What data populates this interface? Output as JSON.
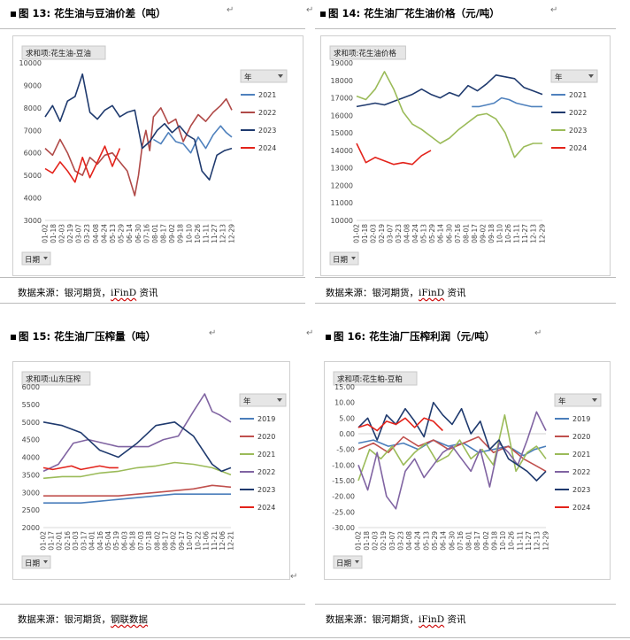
{
  "figures": [
    {
      "title": "图 13: 花生油与豆油价差（吨）",
      "source_prefix": "数据来源：银河期货，",
      "source_link": "iFinD",
      "source_suffix": " 资讯"
    },
    {
      "title": "图 14: 花生油厂花生油价格（元/吨）",
      "source_prefix": "数据来源：银河期货，",
      "source_link": "iFinD",
      "source_suffix": " 资讯"
    },
    {
      "title": "图 15: 花生油厂压榨量（吨）",
      "source_prefix": "数据来源：银河期货，",
      "source_link": "钢联数据",
      "source_suffix": ""
    },
    {
      "title": "图 16: 花生油厂压榨利润（元/吨）",
      "source_prefix": "数据来源：银河期货，",
      "source_link": "iFinD",
      "source_suffix": " 资讯"
    }
  ],
  "para_mark": "↵",
  "colors": {
    "2019": "#4a7ebb",
    "2020": "#c0504d",
    "2021": "#9bbb59",
    "2022": "#8064a2",
    "2023": "#1f3a6e",
    "2024": "#e3231b",
    "red_chart13_2022": "#b04a48",
    "blue_chart13_2021": "#4f81bd",
    "green": "#9bbb59"
  },
  "chart_data": [
    {
      "type": "line",
      "field_button": "求和项:花生油-豆油",
      "legend_title": "年",
      "axis_button": "日期",
      "ylim": [
        3000,
        10000
      ],
      "yticks": [
        "10000",
        "9000",
        "8000",
        "7000",
        "6000",
        "5000",
        "4000",
        "3000"
      ],
      "xticks": [
        "01-02",
        "01-18",
        "02-03",
        "02-19",
        "03-07",
        "03-23",
        "04-08",
        "04-24",
        "05-13",
        "05-29",
        "06-14",
        "06-30",
        "07-16",
        "08-01",
        "08-17",
        "09-02",
        "09-18",
        "10-10",
        "10-26",
        "11-11",
        "11-27",
        "12-13",
        "12-29"
      ],
      "series": [
        {
          "name": "2021",
          "color": "#4f81bd",
          "x": [
            0.58,
            0.62,
            0.66,
            0.7,
            0.74,
            0.78,
            0.82,
            0.86,
            0.9,
            0.94,
            0.97,
            1.0
          ],
          "values": [
            6600,
            6400,
            6900,
            6500,
            6400,
            6000,
            6700,
            6200,
            6800,
            7200,
            6900,
            6700
          ]
        },
        {
          "name": "2022",
          "color": "#b04a48",
          "x": [
            0.0,
            0.04,
            0.08,
            0.12,
            0.16,
            0.2,
            0.24,
            0.28,
            0.32,
            0.36,
            0.4,
            0.44,
            0.48,
            0.5,
            0.52,
            0.54,
            0.56,
            0.58,
            0.62,
            0.66,
            0.7,
            0.74,
            0.78,
            0.82,
            0.86,
            0.9,
            0.94,
            0.97,
            1.0
          ],
          "values": [
            6200,
            5900,
            6600,
            6000,
            5200,
            5000,
            5800,
            5500,
            5900,
            6000,
            5600,
            5200,
            4100,
            5000,
            6300,
            7000,
            6100,
            7600,
            8000,
            7300,
            7500,
            6500,
            7200,
            7700,
            7400,
            7800,
            8100,
            8400,
            7900
          ]
        },
        {
          "name": "2023",
          "color": "#1f3a6e",
          "x": [
            0.0,
            0.04,
            0.08,
            0.12,
            0.16,
            0.2,
            0.24,
            0.28,
            0.32,
            0.36,
            0.4,
            0.44,
            0.48,
            0.52,
            0.56,
            0.6,
            0.64,
            0.68,
            0.72,
            0.76,
            0.8,
            0.84,
            0.88,
            0.92,
            0.96,
            1.0
          ],
          "values": [
            7600,
            8100,
            7400,
            8300,
            8500,
            9500,
            7800,
            7500,
            7900,
            8100,
            7600,
            7800,
            7900,
            6200,
            6500,
            7000,
            7300,
            6900,
            7200,
            6800,
            6600,
            5200,
            4800,
            5900,
            6100,
            6200
          ]
        },
        {
          "name": "2024",
          "color": "#e3231b",
          "x": [
            0.0,
            0.04,
            0.08,
            0.12,
            0.16,
            0.2,
            0.24,
            0.28,
            0.32,
            0.36,
            0.4
          ],
          "values": [
            5300,
            5100,
            5600,
            5200,
            4700,
            5800,
            4900,
            5600,
            6300,
            5400,
            6200
          ]
        }
      ]
    },
    {
      "type": "line",
      "field_button": "求和项:花生油价格",
      "legend_title": "年",
      "axis_button": "日期",
      "ylim": [
        10000,
        19000
      ],
      "yticks": [
        "19000",
        "18000",
        "17000",
        "16000",
        "15000",
        "14000",
        "13000",
        "12000",
        "11000",
        "10000"
      ],
      "xticks": [
        "01-02",
        "01-18",
        "02-03",
        "02-19",
        "03-07",
        "03-23",
        "04-08",
        "04-24",
        "05-13",
        "05-29",
        "06-14",
        "06-30",
        "07-16",
        "08-01",
        "08-17",
        "09-02",
        "09-18",
        "10-10",
        "10-26",
        "11-11",
        "11-27",
        "12-13",
        "12-29"
      ],
      "series": [
        {
          "name": "2021",
          "color": "#4f81bd",
          "x": [
            0.62,
            0.66,
            0.7,
            0.74,
            0.78,
            0.82,
            0.86,
            0.9,
            0.94,
            1.0
          ],
          "values": [
            16500,
            16500,
            16600,
            16700,
            17000,
            16900,
            16700,
            16600,
            16500,
            16500
          ]
        },
        {
          "name": "2022",
          "color": "#1f3a6e",
          "x": [
            0.0,
            0.05,
            0.1,
            0.15,
            0.2,
            0.25,
            0.3,
            0.35,
            0.4,
            0.45,
            0.5,
            0.55,
            0.6,
            0.65,
            0.7,
            0.75,
            0.8,
            0.85,
            0.9,
            0.95,
            1.0
          ],
          "values": [
            16500,
            16600,
            16700,
            16600,
            16800,
            17000,
            17200,
            17500,
            17200,
            17000,
            17300,
            17100,
            17700,
            17400,
            17800,
            18300,
            18200,
            18100,
            17600,
            17400,
            17200
          ]
        },
        {
          "name": "2023",
          "color": "#9bbb59",
          "x": [
            0.0,
            0.05,
            0.1,
            0.15,
            0.2,
            0.25,
            0.3,
            0.35,
            0.4,
            0.45,
            0.5,
            0.55,
            0.6,
            0.65,
            0.7,
            0.75,
            0.8,
            0.85,
            0.9,
            0.95,
            1.0
          ],
          "values": [
            17100,
            16900,
            17500,
            18500,
            17500,
            16200,
            15500,
            15200,
            14800,
            14400,
            14700,
            15200,
            15600,
            16000,
            16100,
            15800,
            15000,
            13600,
            14200,
            14400,
            14400
          ]
        },
        {
          "name": "2024",
          "color": "#e3231b",
          "x": [
            0.0,
            0.05,
            0.1,
            0.15,
            0.2,
            0.25,
            0.3,
            0.35,
            0.4
          ],
          "values": [
            14400,
            13300,
            13600,
            13400,
            13200,
            13300,
            13200,
            13700,
            14000
          ]
        }
      ]
    },
    {
      "type": "line",
      "field_button": "求和项:山东压榨",
      "legend_title": "年",
      "axis_button": "日期",
      "ylim": [
        2000,
        6000
      ],
      "yticks": [
        "6000",
        "5500",
        "5000",
        "4500",
        "4000",
        "3500",
        "3000",
        "2500",
        "2000"
      ],
      "xticks": [
        "01-02",
        "01-17",
        "02-01",
        "02-16",
        "03-03",
        "03-17",
        "04-01",
        "04-16",
        "05-04",
        "05-19",
        "06-03",
        "06-18",
        "07-03",
        "07-18",
        "08-02",
        "08-17",
        "09-02",
        "09-17",
        "10-07",
        "10-22",
        "11-06",
        "11-21",
        "12-06",
        "12-21"
      ],
      "series": [
        {
          "name": "2019",
          "color": "#4a7ebb",
          "x": [
            0.0,
            0.1,
            0.2,
            0.3,
            0.4,
            0.5,
            0.6,
            0.7,
            0.8,
            0.9,
            1.0
          ],
          "values": [
            2700,
            2700,
            2700,
            2750,
            2800,
            2850,
            2900,
            2950,
            2950,
            2950,
            2950
          ]
        },
        {
          "name": "2020",
          "color": "#c0504d",
          "x": [
            0.0,
            0.1,
            0.2,
            0.3,
            0.4,
            0.5,
            0.6,
            0.7,
            0.8,
            0.9,
            1.0
          ],
          "values": [
            2900,
            2900,
            2900,
            2900,
            2900,
            2950,
            3000,
            3050,
            3100,
            3200,
            3150
          ]
        },
        {
          "name": "2021",
          "color": "#9bbb59",
          "x": [
            0.0,
            0.1,
            0.2,
            0.3,
            0.4,
            0.5,
            0.6,
            0.7,
            0.8,
            0.9,
            1.0
          ],
          "values": [
            3400,
            3450,
            3450,
            3550,
            3600,
            3700,
            3750,
            3850,
            3800,
            3700,
            3500
          ]
        },
        {
          "name": "2022",
          "color": "#8064a2",
          "x": [
            0.0,
            0.08,
            0.16,
            0.24,
            0.32,
            0.4,
            0.48,
            0.56,
            0.64,
            0.72,
            0.8,
            0.86,
            0.9,
            0.94,
            0.97,
            1.0
          ],
          "values": [
            3600,
            3800,
            4400,
            4500,
            4400,
            4300,
            4300,
            4300,
            4500,
            4600,
            5300,
            5800,
            5300,
            5200,
            5100,
            5000
          ]
        },
        {
          "name": "2023",
          "color": "#1f3a6e",
          "x": [
            0.0,
            0.1,
            0.2,
            0.3,
            0.4,
            0.5,
            0.6,
            0.7,
            0.8,
            0.9,
            0.95,
            1.0
          ],
          "values": [
            5000,
            4900,
            4700,
            4200,
            4000,
            4400,
            4900,
            5000,
            4600,
            3800,
            3600,
            3700
          ]
        },
        {
          "name": "2024",
          "color": "#e3231b",
          "x": [
            0.0,
            0.05,
            0.1,
            0.15,
            0.2,
            0.25,
            0.3,
            0.35,
            0.4
          ],
          "values": [
            3700,
            3650,
            3700,
            3750,
            3650,
            3700,
            3750,
            3700,
            3700
          ]
        }
      ]
    },
    {
      "type": "line",
      "field_button": "求和项:花生粕-豆粕",
      "legend_title": "年",
      "axis_button": "日期",
      "ylim": [
        -30,
        15
      ],
      "yticks": [
        "15.00",
        "10.00",
        "5.00",
        "0.00",
        "-5.00",
        "-10.00",
        "-15.00",
        "-20.00",
        "-25.00",
        "-30.00"
      ],
      "xticks": [
        "01-02",
        "01-18",
        "02-03",
        "02-19",
        "03-07",
        "03-23",
        "04-08",
        "04-24",
        "05-13",
        "05-29",
        "06-14",
        "06-30",
        "07-16",
        "08-01",
        "08-17",
        "09-02",
        "09-18",
        "10-10",
        "10-26",
        "11-11",
        "11-27",
        "12-13",
        "12-29"
      ],
      "series": [
        {
          "name": "2019",
          "color": "#4a7ebb",
          "x": [
            0.0,
            0.08,
            0.16,
            0.24,
            0.32,
            0.4,
            0.48,
            0.56,
            0.64,
            0.72,
            0.8,
            0.88,
            0.94,
            1.0
          ],
          "values": [
            -3,
            -2,
            -4,
            -3,
            -5,
            -2,
            -4,
            -3,
            -6,
            -5,
            -4,
            -7,
            -5,
            -4
          ]
        },
        {
          "name": "2020",
          "color": "#c0504d",
          "x": [
            0.0,
            0.08,
            0.16,
            0.24,
            0.32,
            0.4,
            0.48,
            0.56,
            0.64,
            0.72,
            0.8,
            0.88,
            0.94,
            1.0
          ],
          "values": [
            -5,
            -3,
            -6,
            -1,
            -4,
            -2,
            -5,
            -3,
            -1,
            -6,
            -4,
            -8,
            -10,
            -12
          ]
        },
        {
          "name": "2021",
          "color": "#9bbb59",
          "x": [
            0.0,
            0.06,
            0.12,
            0.18,
            0.24,
            0.3,
            0.36,
            0.42,
            0.48,
            0.54,
            0.6,
            0.66,
            0.72,
            0.78,
            0.84,
            0.9,
            0.95,
            1.0
          ],
          "values": [
            -15,
            -5,
            -8,
            -4,
            -10,
            -6,
            -3,
            -9,
            -7,
            -2,
            -8,
            -5,
            -10,
            6,
            -12,
            -6,
            -4,
            -8
          ]
        },
        {
          "name": "2022",
          "color": "#8064a2",
          "x": [
            0.0,
            0.05,
            0.1,
            0.15,
            0.2,
            0.25,
            0.3,
            0.35,
            0.4,
            0.45,
            0.5,
            0.55,
            0.6,
            0.65,
            0.7,
            0.75,
            0.8,
            0.85,
            0.9,
            0.95,
            1.0
          ],
          "values": [
            -10,
            -18,
            -6,
            -20,
            -24,
            -12,
            -8,
            -14,
            -10,
            -6,
            -4,
            -8,
            -12,
            -5,
            -17,
            -3,
            -6,
            -10,
            -2,
            7,
            1
          ]
        },
        {
          "name": "2023",
          "color": "#1f3a6e",
          "x": [
            0.0,
            0.05,
            0.1,
            0.15,
            0.2,
            0.25,
            0.3,
            0.35,
            0.4,
            0.45,
            0.5,
            0.55,
            0.6,
            0.65,
            0.7,
            0.75,
            0.8,
            0.85,
            0.9,
            0.95,
            1.0
          ],
          "values": [
            2,
            5,
            -2,
            6,
            3,
            8,
            4,
            -1,
            10,
            6,
            3,
            8,
            0,
            4,
            -5,
            -2,
            -8,
            -10,
            -12,
            -15,
            -12
          ]
        },
        {
          "name": "2024",
          "color": "#e3231b",
          "x": [
            0.0,
            0.05,
            0.1,
            0.15,
            0.2,
            0.25,
            0.3,
            0.35,
            0.4,
            0.45
          ],
          "values": [
            2,
            3,
            1,
            4,
            3,
            5,
            2,
            5,
            4,
            1
          ]
        }
      ]
    }
  ]
}
